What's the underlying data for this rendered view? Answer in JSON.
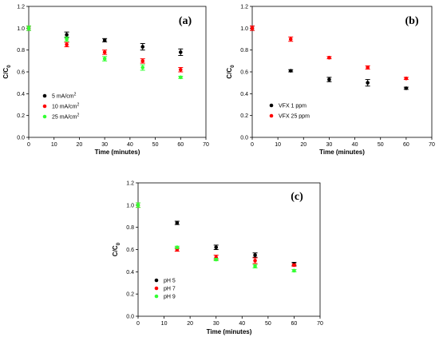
{
  "chart_data": [
    {
      "type": "scatter",
      "panel_label": "(a)",
      "xlabel": "Time (minutes)",
      "ylabel": "C/C0",
      "xlim": [
        0,
        70
      ],
      "ylim": [
        0,
        1.2
      ],
      "xticks": [
        0,
        10,
        20,
        30,
        40,
        50,
        60,
        70
      ],
      "yticks": [
        0.0,
        0.2,
        0.4,
        0.6,
        0.8,
        1.0,
        1.2
      ],
      "legend_position": "lower-left",
      "series": [
        {
          "name": "5 mA/cm2",
          "color": "#000000",
          "x": [
            0,
            15,
            30,
            45,
            60
          ],
          "y": [
            1.0,
            0.94,
            0.89,
            0.83,
            0.78
          ],
          "err": [
            0.02,
            0.025,
            0.015,
            0.03,
            0.03
          ]
        },
        {
          "name": "10 mA/cm2",
          "color": "#ff0000",
          "x": [
            0,
            15,
            30,
            45,
            60
          ],
          "y": [
            1.0,
            0.85,
            0.78,
            0.7,
            0.62
          ],
          "err": [
            0.02,
            0.02,
            0.02,
            0.02,
            0.02
          ]
        },
        {
          "name": "25 mA/cm2",
          "color": "#33ff33",
          "x": [
            0,
            15,
            30,
            45,
            60
          ],
          "y": [
            1.0,
            0.9,
            0.72,
            0.64,
            0.55
          ],
          "err": [
            0.02,
            0.02,
            0.02,
            0.025,
            0.01
          ]
        }
      ]
    },
    {
      "type": "scatter",
      "panel_label": "(b)",
      "xlabel": "Time (minutes)",
      "ylabel": "C/C0",
      "xlim": [
        0,
        70
      ],
      "ylim": [
        0,
        1.2
      ],
      "xticks": [
        0,
        10,
        20,
        30,
        40,
        50,
        60,
        70
      ],
      "yticks": [
        0.0,
        0.2,
        0.4,
        0.6,
        0.8,
        1.0,
        1.2
      ],
      "legend_position": "lower-left",
      "series": [
        {
          "name": "VFX 1 ppm",
          "color": "#000000",
          "x": [
            0,
            15,
            30,
            45,
            60
          ],
          "y": [
            1.0,
            0.61,
            0.53,
            0.5,
            0.45
          ],
          "err": [
            0.02,
            0.01,
            0.02,
            0.03,
            0.01
          ]
        },
        {
          "name": "VFX 25 ppm",
          "color": "#ff0000",
          "x": [
            0,
            15,
            30,
            45,
            60
          ],
          "y": [
            1.0,
            0.9,
            0.73,
            0.64,
            0.54
          ],
          "err": [
            0.02,
            0.02,
            0.01,
            0.015,
            0.01
          ]
        }
      ]
    },
    {
      "type": "scatter",
      "panel_label": "(c)",
      "xlabel": "Time (minutes)",
      "ylabel": "C/C0",
      "xlim": [
        0,
        70
      ],
      "ylim": [
        0,
        1.2
      ],
      "xticks": [
        0,
        10,
        20,
        30,
        40,
        50,
        60,
        70
      ],
      "yticks": [
        0.0,
        0.2,
        0.4,
        0.6,
        0.8,
        1.0,
        1.2
      ],
      "legend_position": "lower-left",
      "series": [
        {
          "name": "pH 5",
          "color": "#000000",
          "x": [
            15,
            30,
            45,
            60
          ],
          "y": [
            0.84,
            0.62,
            0.55,
            0.47
          ],
          "err": [
            0.015,
            0.02,
            0.02,
            0.015
          ]
        },
        {
          "name": "pH 7",
          "color": "#ff0000",
          "x": [
            0,
            15,
            30,
            45,
            60
          ],
          "y": [
            1.0,
            0.6,
            0.53,
            0.5,
            0.46
          ],
          "err": [
            0.02,
            0.015,
            0.02,
            0.025,
            0.01
          ]
        },
        {
          "name": "pH 9",
          "color": "#33ff33",
          "x": [
            0,
            15,
            30,
            45,
            60
          ],
          "y": [
            1.0,
            0.62,
            0.51,
            0.45,
            0.41
          ],
          "err": [
            0.02,
            0.01,
            0.01,
            0.015,
            0.01
          ]
        }
      ]
    }
  ]
}
